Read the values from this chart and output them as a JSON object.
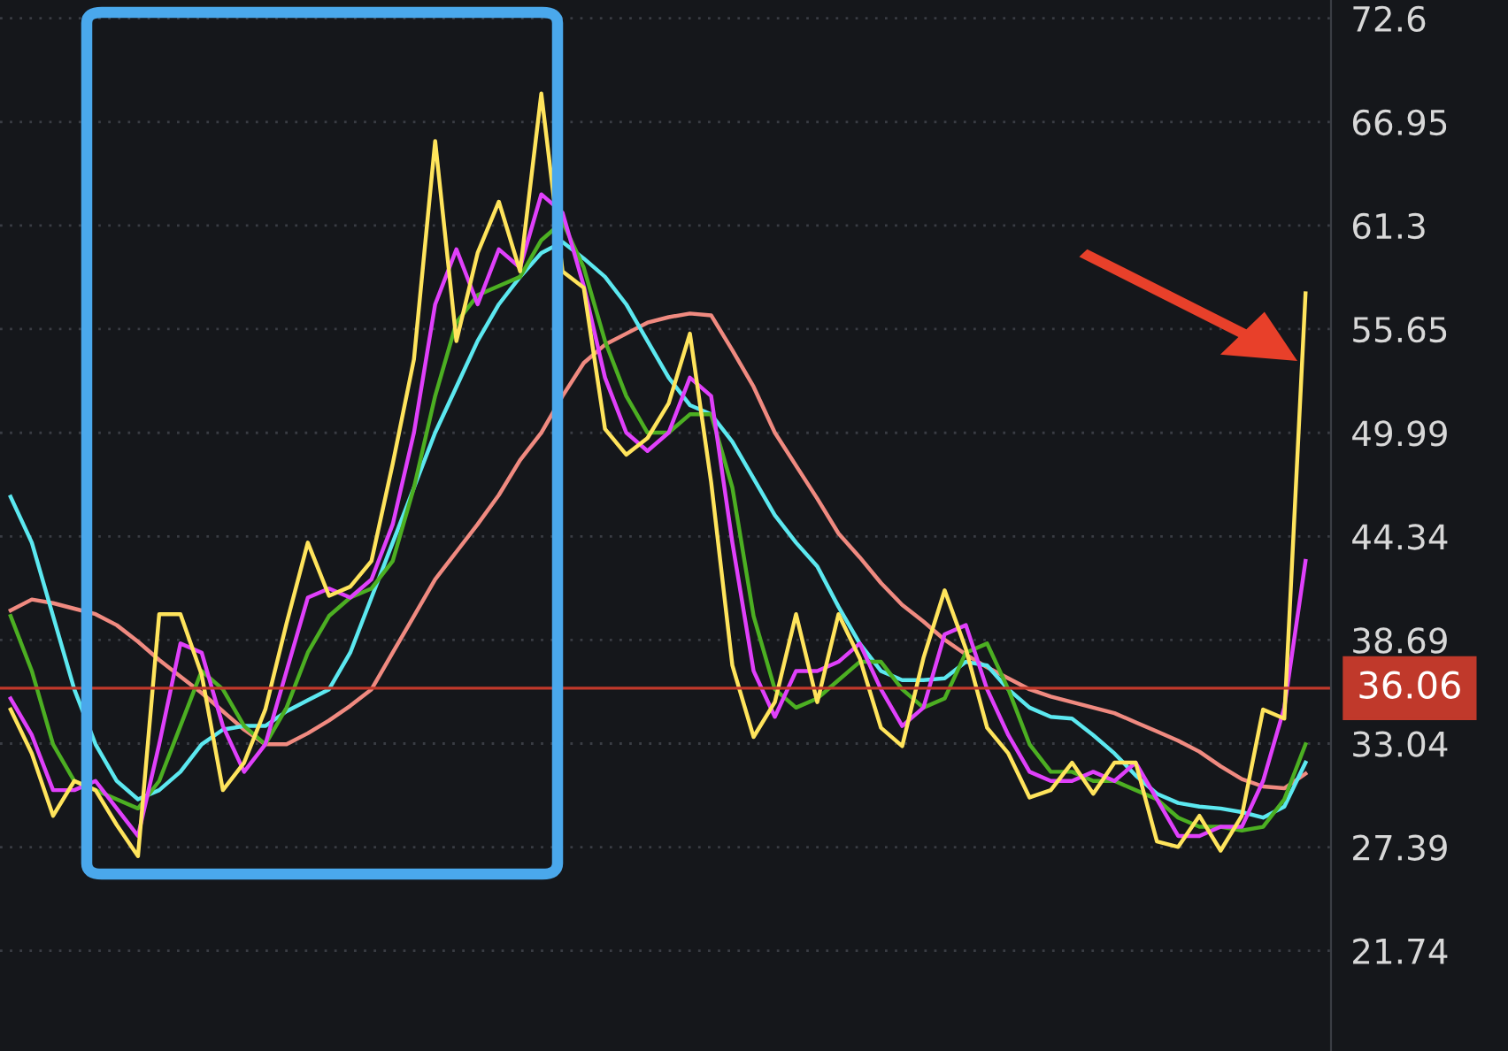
{
  "chart_data": {
    "type": "line",
    "categories": [
      null,
      null,
      null,
      null,
      null,
      null,
      null,
      null,
      null,
      null,
      null,
      null,
      null,
      null,
      null,
      null,
      null,
      null,
      null,
      null,
      null,
      null,
      null,
      null,
      null,
      null,
      null,
      null,
      null,
      null,
      null,
      null,
      null,
      null,
      null,
      null,
      null,
      null,
      null,
      null,
      null,
      null,
      null,
      null,
      null,
      null,
      null,
      null,
      null,
      null,
      null,
      null,
      null,
      null,
      null,
      null,
      null,
      null,
      null,
      null,
      null,
      null
    ],
    "series": [
      {
        "color": "#f08a80",
        "values": [
          40.3,
          40.9,
          40.7,
          40.4,
          40.1,
          39.5,
          38.6,
          37.6,
          36.7,
          35.8,
          34.8,
          33.8,
          33,
          33,
          33.6,
          34.3,
          35.1,
          36,
          38,
          40,
          42,
          43.5,
          45,
          46.6,
          48.5,
          50,
          52,
          53.8,
          54.8,
          55.4,
          56,
          56.3,
          56.5,
          56.4,
          54.5,
          52.5,
          50,
          48.2,
          46.4,
          44.5,
          43.2,
          41.8,
          40.6,
          39.7,
          38.7,
          37.9,
          37.2,
          36.6,
          36,
          35.6,
          35.3,
          35,
          34.7,
          34.2,
          33.7,
          33.2,
          32.6,
          31.8,
          31.1,
          30.7,
          30.6,
          31.4
        ]
      },
      {
        "color": "#5ce8f0",
        "values": [
          46.5,
          44,
          40,
          36,
          33,
          31,
          30,
          30.5,
          31.5,
          33,
          33.8,
          34,
          34,
          34.8,
          35.4,
          36,
          38,
          41,
          44,
          47,
          50,
          52.5,
          55,
          57,
          58.5,
          59.8,
          60.4,
          59.5,
          58.5,
          57,
          55,
          53,
          51.5,
          51,
          49.5,
          47.5,
          45.5,
          44,
          42.7,
          40.5,
          38.5,
          37,
          36.5,
          36.5,
          36.6,
          37.5,
          37.3,
          36,
          35,
          34.5,
          34.4,
          33.5,
          32.5,
          31.3,
          30.3,
          29.8,
          29.6,
          29.5,
          29.3,
          29,
          29.6,
          32
        ]
      },
      {
        "color": "#4caf22",
        "values": [
          40,
          37,
          33,
          31,
          30.5,
          30,
          29.5,
          31,
          34,
          37,
          36,
          34,
          33,
          35,
          38,
          40,
          41,
          41.5,
          43,
          47,
          52,
          56,
          57.5,
          58,
          58.5,
          60.5,
          61.5,
          59,
          55,
          52,
          50,
          50,
          51,
          51,
          47,
          40,
          36,
          35,
          35.5,
          36.5,
          37.5,
          37.5,
          36,
          35,
          35.5,
          38,
          38.5,
          36,
          33,
          31.5,
          31.5,
          31,
          31,
          30.5,
          30,
          29,
          28.5,
          28.5,
          28.3,
          28.5,
          30,
          33
        ]
      },
      {
        "color": "#e040fb",
        "values": [
          35.5,
          33.5,
          30.5,
          30.5,
          31,
          29.5,
          28,
          33,
          38.5,
          38,
          34,
          31.5,
          33,
          37,
          41,
          41.5,
          41,
          42,
          45,
          50,
          57,
          60,
          57,
          60,
          59,
          63,
          62,
          58,
          53,
          50,
          49,
          50,
          53,
          52,
          44,
          37,
          34.5,
          37,
          37,
          37.5,
          38.5,
          36,
          34,
          35,
          39,
          39.5,
          36,
          33.5,
          31.5,
          31,
          31,
          31.5,
          31,
          32,
          30,
          28,
          28,
          28.5,
          28.5,
          31,
          35,
          43
        ]
      },
      {
        "color": "#ffe45c",
        "values": [
          34.9,
          32.5,
          29.1,
          31,
          30.5,
          28.6,
          26.9,
          40.1,
          40.1,
          36.8,
          30.5,
          32,
          34.9,
          39.6,
          44,
          41.1,
          41.6,
          43,
          48.3,
          54,
          65.9,
          55,
          59.8,
          62.6,
          58.8,
          68.5,
          58.8,
          57.9,
          50.2,
          48.8,
          49.7,
          51.6,
          55.4,
          47.3,
          37.3,
          33.4,
          35.3,
          40.1,
          35.3,
          40.1,
          37.7,
          33.9,
          32.9,
          37.7,
          41.4,
          38.2,
          33.9,
          32.5,
          30.1,
          30.5,
          32,
          30.3,
          32,
          32,
          27.7,
          27.4,
          29.1,
          27.2,
          29.1,
          34.9,
          34.4,
          57.6
        ]
      }
    ],
    "ylim": [
      16.27,
      73.6
    ],
    "yticks": [
      72.6,
      66.95,
      61.3,
      55.65,
      49.99,
      44.34,
      38.69,
      33.04,
      27.39,
      21.74
    ],
    "tick_labels": "y",
    "grid": "y",
    "legend": false,
    "marker": "none",
    "line_style": "solid",
    "ref_lines": [
      {
        "axis": "y",
        "value": 36.06,
        "label": "36.06",
        "color": "#c0392b"
      }
    ]
  }
}
